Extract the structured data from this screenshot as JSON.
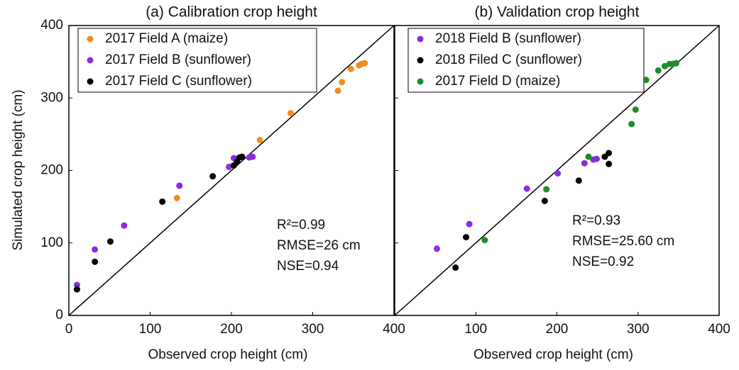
{
  "chart_data": [
    {
      "type": "scatter",
      "title": "(a) Calibration crop height",
      "x_label": "Observed crop height (cm)",
      "y_label": "Simulated crop height (cm)",
      "xlim": [
        0,
        400
      ],
      "ylim": [
        0,
        400
      ],
      "xticks": [
        0,
        100,
        200,
        300,
        400
      ],
      "yticks": [
        0,
        100,
        200,
        300,
        400
      ],
      "annotations": [
        "R²=0.99",
        "RMSE=26 cm",
        "NSE=0.94"
      ],
      "series": [
        {
          "name": "2017 Field A (maize)",
          "color": "#f28c1f",
          "x": [
            133,
            235,
            273,
            331,
            336,
            347,
            357,
            360,
            364
          ],
          "values": [
            162,
            242,
            279,
            310,
            322,
            340,
            345,
            347,
            348
          ]
        },
        {
          "name": "2017 Field B (sunflower)",
          "color": "#8a2be2",
          "x": [
            10,
            32,
            68,
            136,
            197,
            203,
            222,
            226
          ],
          "values": [
            42,
            91,
            124,
            179,
            205,
            217,
            218,
            219
          ]
        },
        {
          "name": "2017 Field C (sunflower)",
          "color": "#000000",
          "x": [
            10,
            32,
            51,
            115,
            177,
            203,
            207,
            210,
            213
          ],
          "values": [
            36,
            74,
            102,
            157,
            192,
            207,
            212,
            218,
            219
          ]
        }
      ]
    },
    {
      "type": "scatter",
      "title": "(b) Validation crop height",
      "x_label": "Observed crop height (cm)",
      "xlim": [
        0,
        400
      ],
      "ylim": [
        0,
        400
      ],
      "xticks": [
        100,
        200,
        300,
        400
      ],
      "yticks": [
        0,
        100,
        200,
        300,
        400
      ],
      "annotations": [
        "R²=0.93",
        "RMSE=25.60 cm",
        "NSE=0.92"
      ],
      "series": [
        {
          "name": "2018 Field B (sunflower)",
          "color": "#8a2be2",
          "x": [
            52,
            92,
            163,
            201,
            234,
            245,
            249
          ],
          "values": [
            92,
            126,
            175,
            196,
            210,
            215,
            216
          ]
        },
        {
          "name": "2018 Filed C (sunflower)",
          "color": "#000000",
          "x": [
            75,
            88,
            185,
            227,
            259,
            264,
            264
          ],
          "values": [
            66,
            108,
            158,
            186,
            219,
            224,
            209
          ]
        },
        {
          "name": "2017 Field D (maize)",
          "color": "#1e8c2a",
          "x": [
            111,
            187,
            239,
            292,
            297,
            310,
            325,
            333,
            339,
            343,
            347
          ],
          "values": [
            104,
            174,
            219,
            264,
            284,
            325,
            338,
            344,
            347,
            347,
            348
          ]
        }
      ]
    }
  ]
}
